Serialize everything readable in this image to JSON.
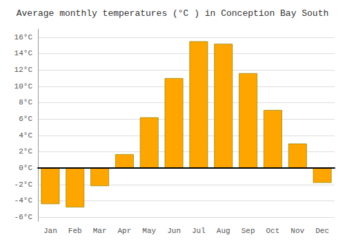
{
  "chart_data": {
    "type": "bar",
    "title": "Average monthly temperatures (°C ) in Conception Bay South",
    "categories": [
      "Jan",
      "Feb",
      "Mar",
      "Apr",
      "May",
      "Jun",
      "Jul",
      "Aug",
      "Sep",
      "Oct",
      "Nov",
      "Dec"
    ],
    "values": [
      -4.4,
      -4.8,
      -2.2,
      1.7,
      6.2,
      11.0,
      15.5,
      15.2,
      11.6,
      7.1,
      3.0,
      -1.8
    ],
    "color": "#FFA500",
    "ylim": [
      -6.5,
      17.0
    ],
    "yticks": [
      {
        "value": -6,
        "label": "-6°C"
      },
      {
        "value": -4,
        "label": "-4°C"
      },
      {
        "value": -2,
        "label": "-2°C"
      },
      {
        "value": 0,
        "label": "0°C"
      },
      {
        "value": 2,
        "label": "2°C"
      },
      {
        "value": 4,
        "label": "4°C"
      },
      {
        "value": 6,
        "label": "6°C"
      },
      {
        "value": 8,
        "label": "8°C"
      },
      {
        "value": 10,
        "label": "10°C"
      },
      {
        "value": 12,
        "label": "12°C"
      },
      {
        "value": 14,
        "label": "14°C"
      },
      {
        "value": 16,
        "label": "16°C"
      }
    ],
    "grid": true
  }
}
